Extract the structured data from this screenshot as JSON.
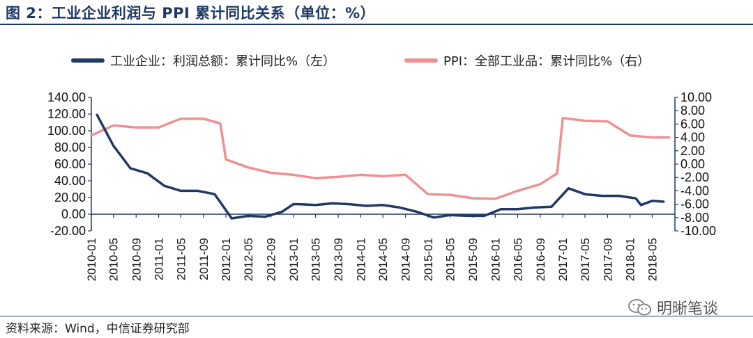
{
  "title": "图 2：工业企业利润与 PPI 累计同比关系（单位：%）",
  "source": "资料来源：Wind，中信证券研究部",
  "watermark": "明晰笔谈",
  "colors": {
    "title": "#1f3864",
    "left_series": "#1f3864",
    "right_series": "#f09090",
    "axis": "#1f3864"
  },
  "chart_data": {
    "type": "line",
    "x_ticks": [
      "2010-01",
      "2010-05",
      "2010-09",
      "2011-01",
      "2011-05",
      "2011-09",
      "2012-01",
      "2012-05",
      "2012-09",
      "2013-01",
      "2013-05",
      "2013-09",
      "2014-01",
      "2014-05",
      "2014-09",
      "2015-01",
      "2015-05",
      "2015-09",
      "2016-01",
      "2016-05",
      "2016-09",
      "2017-01",
      "2017-05",
      "2017-09",
      "2018-01",
      "2018-05"
    ],
    "y_left": {
      "ticks": [
        "140.00",
        "120.00",
        "100.00",
        "80.00",
        "60.00",
        "40.00",
        "20.00",
        "0.00",
        "-20.00"
      ],
      "min": -20,
      "max": 140
    },
    "y_right": {
      "ticks": [
        "10.00",
        "8.00",
        "6.00",
        "4.00",
        "2.00",
        "0.00",
        "-2.00",
        "-4.00",
        "-6.00",
        "-8.00",
        "-10.00"
      ],
      "min": -10,
      "max": 10
    },
    "series": [
      {
        "name": "工业企业：利润总额：累计同比%（左）",
        "axis": "left",
        "x": [
          "2010-02",
          "2010-05",
          "2010-08",
          "2010-11",
          "2011-02",
          "2011-05",
          "2011-08",
          "2011-11",
          "2012-02",
          "2012-05",
          "2012-08",
          "2012-11",
          "2013-01",
          "2013-02",
          "2013-05",
          "2013-08",
          "2013-11",
          "2014-02",
          "2014-05",
          "2014-08",
          "2014-11",
          "2015-02",
          "2015-05",
          "2015-08",
          "2015-11",
          "2016-02",
          "2016-05",
          "2016-08",
          "2016-11",
          "2017-02",
          "2017-05",
          "2017-08",
          "2017-11",
          "2018-02",
          "2018-03",
          "2018-05",
          "2018-07"
        ],
        "values": [
          119,
          82,
          55,
          49,
          34,
          28,
          28,
          24,
          -5,
          -2,
          -3,
          3,
          12,
          12,
          11,
          13,
          12,
          10,
          11,
          8,
          3,
          -4,
          -1,
          -2,
          -2,
          6,
          6,
          8,
          9,
          31,
          24,
          22,
          22,
          19,
          11,
          16,
          15
        ]
      },
      {
        "name": "PPI：全部工业品：累计同比%（右）",
        "axis": "right",
        "x": [
          "2010-01",
          "2010-05",
          "2010-09",
          "2011-01",
          "2011-05",
          "2011-09",
          "2011-12",
          "2012-01",
          "2012-05",
          "2012-09",
          "2013-01",
          "2013-05",
          "2013-09",
          "2014-01",
          "2014-05",
          "2014-09",
          "2015-01",
          "2015-05",
          "2015-09",
          "2016-01",
          "2016-05",
          "2016-09",
          "2016-12",
          "2017-01",
          "2017-05",
          "2017-09",
          "2018-01",
          "2018-05",
          "2018-08"
        ],
        "values": [
          4.3,
          5.8,
          5.5,
          5.5,
          6.8,
          6.8,
          6.1,
          0.7,
          -0.5,
          -1.3,
          -1.6,
          -2.1,
          -1.9,
          -1.6,
          -1.8,
          -1.6,
          -4.5,
          -4.6,
          -5.1,
          -5.2,
          -4.0,
          -3.0,
          -1.4,
          6.9,
          6.5,
          6.4,
          4.3,
          4.0,
          4.0
        ]
      }
    ]
  }
}
